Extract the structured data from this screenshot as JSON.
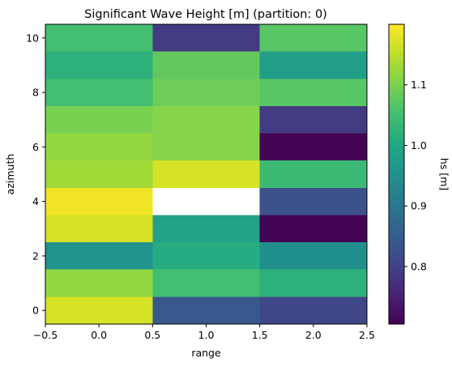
{
  "chart_data": {
    "type": "heatmap",
    "title": "Significant Wave Height [m] (partition: 0)",
    "xlabel": "range",
    "ylabel": "azimuth",
    "colorbar_label": "hs [m]",
    "colormap": "viridis",
    "clim": [
      0.705,
      1.2
    ],
    "xlim": [
      -0.5,
      2.5
    ],
    "ylim": [
      -0.5,
      10.5
    ],
    "x": [
      0,
      1,
      2
    ],
    "y": [
      0,
      1,
      2,
      3,
      4,
      5,
      6,
      7,
      8,
      9,
      10
    ],
    "xticks": [
      -0.5,
      0.0,
      0.5,
      1.0,
      1.5,
      2.0,
      2.5
    ],
    "xtick_labels": [
      "−0.5",
      "0.0",
      "0.5",
      "1.0",
      "1.5",
      "2.0",
      "2.5"
    ],
    "yticks": [
      0,
      2,
      4,
      6,
      8,
      10
    ],
    "ytick_labels": [
      "0",
      "2",
      "4",
      "6",
      "8",
      "10"
    ],
    "cticks": [
      0.8,
      0.9,
      1.0,
      1.1
    ],
    "ctick_labels": [
      "0.8",
      "0.9",
      "1.0",
      "1.1"
    ],
    "grid": false,
    "values": [
      [
        1.17,
        0.84,
        0.81
      ],
      [
        1.12,
        1.05,
        1.02
      ],
      [
        0.96,
        1.01,
        0.95
      ],
      [
        1.17,
        0.99,
        0.71
      ],
      [
        1.19,
        null,
        0.83
      ],
      [
        1.13,
        1.17,
        1.04
      ],
      [
        1.12,
        1.11,
        0.71
      ],
      [
        1.1,
        1.11,
        0.79
      ],
      [
        1.05,
        1.09,
        1.07
      ],
      [
        1.02,
        1.08,
        0.98
      ],
      [
        1.05,
        0.79,
        1.07
      ]
    ]
  }
}
